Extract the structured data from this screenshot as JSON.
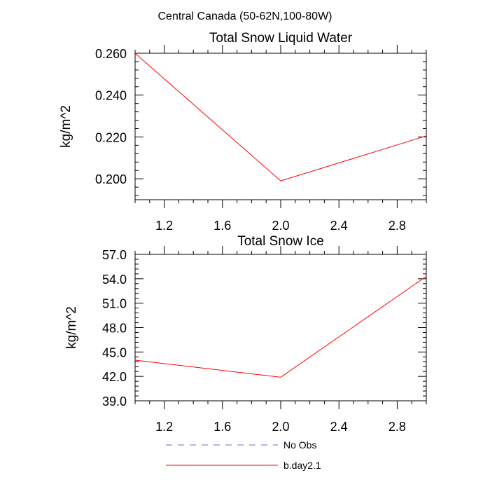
{
  "figure": {
    "suptitle": "Central Canada (50-62N,100-80W)"
  },
  "colors": {
    "series_bday": "#ff0000",
    "series_noobs": "#6e6ecf",
    "axes": "#000000"
  },
  "legend": {
    "placement": "bottom-center",
    "items": [
      {
        "label": "No Obs",
        "style": "dashed",
        "color": "#6e6ecf"
      },
      {
        "label": "b.day2.1",
        "style": "solid",
        "color": "#ff0000"
      }
    ]
  },
  "chart_data": [
    {
      "type": "line",
      "title": "Total Snow Liquid Water",
      "ylabel": "kg/m^2",
      "xlabel": "",
      "xlim": [
        1.0,
        3.0
      ],
      "ylim": [
        0.19,
        0.26
      ],
      "xticks": [
        1.2,
        1.6,
        2.0,
        2.4,
        2.8
      ],
      "xtick_labels": [
        "1.2",
        "1.6",
        "2.0",
        "2.4",
        "2.8"
      ],
      "yticks": [
        0.2,
        0.22,
        0.24,
        0.26
      ],
      "ytick_labels": [
        "0.200",
        "0.220",
        "0.240",
        "0.260"
      ],
      "grid": false,
      "series": [
        {
          "name": "b.day2.1",
          "x": [
            1.0,
            2.0,
            3.0
          ],
          "y": [
            0.26,
            0.199,
            0.2205
          ]
        }
      ]
    },
    {
      "type": "line",
      "title": "Total Snow Ice",
      "ylabel": "kg/m^2",
      "xlabel": "",
      "xlim": [
        1.0,
        3.0
      ],
      "ylim": [
        39.0,
        57.0
      ],
      "xticks": [
        1.2,
        1.6,
        2.0,
        2.4,
        2.8
      ],
      "xtick_labels": [
        "1.2",
        "1.6",
        "2.0",
        "2.4",
        "2.8"
      ],
      "yticks": [
        39,
        42,
        45,
        48,
        51,
        54,
        57
      ],
      "ytick_labels": [
        "39.0",
        "42.0",
        "45.0",
        "48.0",
        "51.0",
        "54.0",
        "57.0"
      ],
      "grid": false,
      "series": [
        {
          "name": "b.day2.1",
          "x": [
            1.0,
            2.0,
            3.0
          ],
          "y": [
            44.0,
            41.9,
            54.3
          ]
        }
      ]
    }
  ]
}
